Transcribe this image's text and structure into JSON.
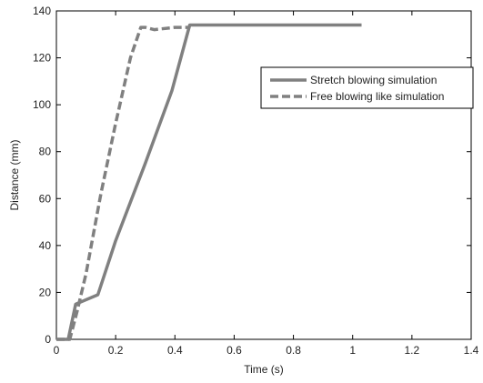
{
  "chart_data": {
    "type": "line",
    "title": "",
    "xlabel": "Time (s)",
    "ylabel": "Distance (mm)",
    "xlim": [
      0,
      1.4
    ],
    "ylim": [
      0,
      140
    ],
    "xticks": [
      0,
      0.2,
      0.4,
      0.6,
      0.8,
      1,
      1.2,
      1.4
    ],
    "xtick_labels": [
      "0",
      "0.2",
      "0.4",
      "0.6",
      "0.8",
      "1",
      "1.2",
      "1.4"
    ],
    "yticks": [
      0,
      20,
      40,
      60,
      80,
      100,
      120,
      140
    ],
    "ytick_labels": [
      "0",
      "20",
      "40",
      "60",
      "80",
      "100",
      "120",
      "140"
    ],
    "grid": false,
    "legend_position": "top-right",
    "series": [
      {
        "name": "Stretch blowing simulation",
        "style": "solid",
        "color": "#808080",
        "x": [
          0,
          0.04,
          0.065,
          0.14,
          0.2,
          0.3,
          0.39,
          0.45,
          0.46,
          1.03
        ],
        "y": [
          0,
          0,
          15,
          19,
          42,
          75,
          106,
          134,
          134,
          134
        ]
      },
      {
        "name": "Free blowing like simulation",
        "style": "dashed",
        "color": "#808080",
        "x": [
          0,
          0.045,
          0.07,
          0.1,
          0.15,
          0.2,
          0.25,
          0.285,
          0.3,
          0.33,
          0.4,
          0.45
        ],
        "y": [
          0,
          0,
          12,
          28,
          62,
          92,
          120,
          133,
          133,
          132,
          133,
          133
        ]
      }
    ]
  }
}
